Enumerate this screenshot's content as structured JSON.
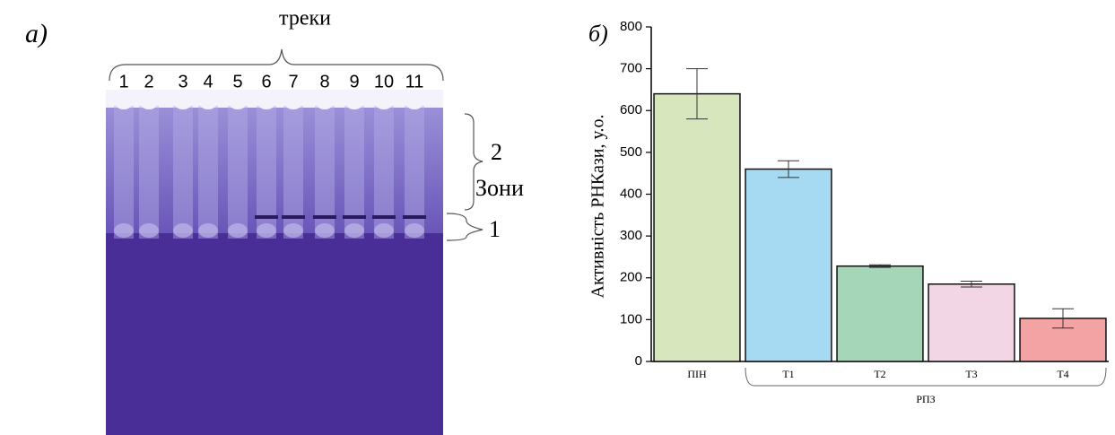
{
  "gel_panel": {
    "panel_label": "а)",
    "top_label": "треки",
    "lanes": [
      "1",
      "2",
      "3",
      "4",
      "5",
      "6",
      "7",
      "8",
      "9",
      "10",
      "11"
    ],
    "zone_2_label": "2",
    "zones_label": "Зони",
    "zone_1_label": "1"
  },
  "chart_data": {
    "type": "bar",
    "panel_label": "б)",
    "ylabel": "Активність  РНКази, у.о.",
    "categories": [
      "ПІН",
      "Т1",
      "Т2",
      "Т3",
      "Т4"
    ],
    "values": [
      640,
      460,
      228,
      185,
      103
    ],
    "errors": [
      60,
      20,
      3,
      7,
      23
    ],
    "colors": [
      "#d8e6bd",
      "#a6d9f2",
      "#a6d6b8",
      "#f2d6e6",
      "#f3a3a3"
    ],
    "group_label": "РПЗ",
    "ylim": [
      0,
      800
    ],
    "yticks": [
      0,
      100,
      200,
      300,
      400,
      500,
      600,
      700,
      800
    ]
  }
}
